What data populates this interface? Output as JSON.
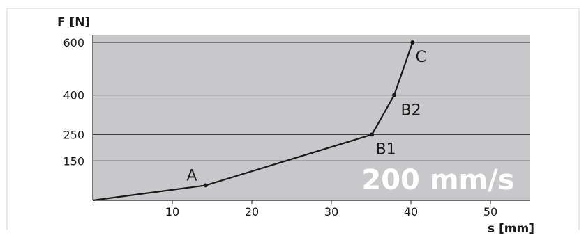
{
  "chart_data": {
    "type": "line",
    "title": "",
    "xlabel": "s [mm]",
    "ylabel": "F [N]",
    "xlim": [
      0,
      55
    ],
    "ylim": [
      0,
      600
    ],
    "x_ticks": [
      10,
      20,
      30,
      40,
      50
    ],
    "y_ticks": [
      150,
      250,
      400,
      600
    ],
    "grid": "horizontal",
    "annotation": "200 mm/s",
    "series": [
      {
        "points": [
          {
            "x": 0,
            "y": 0,
            "label": ""
          },
          {
            "x": 14.2,
            "y": 57,
            "label": "A"
          },
          {
            "x": 35.1,
            "y": 250,
            "label": "B1"
          },
          {
            "x": 37.9,
            "y": 400,
            "label": "B2"
          },
          {
            "x": 40.2,
            "y": 600,
            "label": "C"
          }
        ]
      }
    ]
  },
  "colors": {
    "plot_bg": "#c8c8ca",
    "line": "#1a1a1a",
    "grid": "#2a2a2a",
    "annotation_text": "#ffffff"
  }
}
